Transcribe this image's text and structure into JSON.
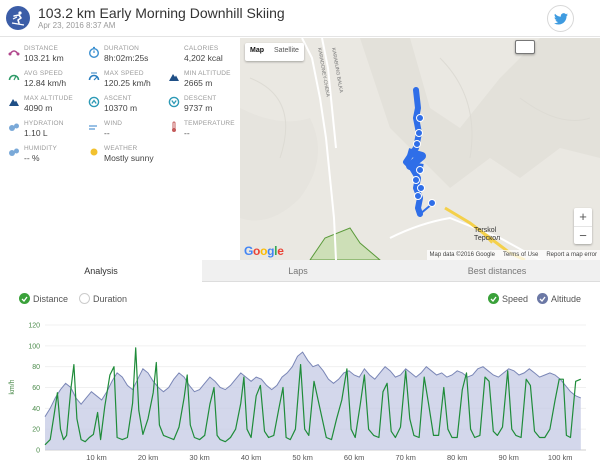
{
  "header": {
    "title": "103.2 km Early Morning Downhill Skiing",
    "subtitle": "Apr 23, 2016 8:37 AM"
  },
  "stats": [
    {
      "label": "DISTANCE",
      "value": "103.21 km",
      "icon": "distance-icon",
      "color": "#b0468c"
    },
    {
      "label": "DURATION",
      "value": "8h:02m:25s",
      "icon": "stopwatch-icon",
      "color": "#3a8fd0"
    },
    {
      "label": "CALORIES",
      "value": "4,202 kcal",
      "icon": "flame-icon",
      "color": "#e05a33"
    },
    {
      "label": "AVG SPEED",
      "value": "12.84 km/h",
      "icon": "speedometer-icon",
      "color": "#2f9a68"
    },
    {
      "label": "MAX SPEED",
      "value": "120.25 km/h",
      "icon": "max-speed-icon",
      "color": "#2b7fc0"
    },
    {
      "label": "MIN ALTITUDE",
      "value": "2665 m",
      "icon": "min-altitude-icon",
      "color": "#1f4f86"
    },
    {
      "label": "MAX ALTITUDE",
      "value": "4090 m",
      "icon": "max-altitude-icon",
      "color": "#1f4f86"
    },
    {
      "label": "ASCENT",
      "value": "10370 m",
      "icon": "ascent-icon",
      "color": "#2d9ab6"
    },
    {
      "label": "DESCENT",
      "value": "9737 m",
      "icon": "descent-icon",
      "color": "#2d9ab6"
    },
    {
      "label": "HYDRATION",
      "value": "1.10 L",
      "icon": "hydration-icon",
      "color": "#7aa9d8"
    },
    {
      "label": "WIND",
      "value": "--",
      "icon": "wind-icon",
      "color": "#5b9bd5"
    },
    {
      "label": "TEMPERATURE",
      "value": "--",
      "icon": "thermometer-icon",
      "color": "#c45b5b"
    },
    {
      "label": "HUMIDITY",
      "value": "-- %",
      "icon": "humidity-icon",
      "color": "#7aa9d8"
    },
    {
      "label": "WEATHER",
      "value": "Mostly sunny",
      "icon": "sun-icon",
      "color": "#f2c12e"
    }
  ],
  "map": {
    "tab_map": "Map",
    "tab_satellite": "Satellite",
    "road_label_1": "KARADONEY-CHEKA",
    "road_label_2": "KARABUNG BALKA",
    "town_line1": "Terskol",
    "town_line2": "Терскол",
    "google": "Google",
    "footer": {
      "data": "Map data ©2016 Google",
      "terms": "Terms of Use",
      "report": "Report a map error"
    },
    "zoom_in": "+",
    "zoom_out": "−"
  },
  "tabs": {
    "analysis": "Analysis",
    "laps": "Laps",
    "best": "Best distances"
  },
  "toggles": {
    "distance": "Distance",
    "duration": "Duration",
    "speed": "Speed",
    "altitude": "Altitude"
  },
  "colors": {
    "speed": "#1f8c3a",
    "altitude_fill": "#c8cde6",
    "altitude_line": "#7a86b6"
  },
  "chart_data": {
    "type": "line",
    "ylabel": "km/h",
    "ylim": [
      0,
      120
    ],
    "yticks": [
      0,
      20,
      40,
      60,
      80,
      100,
      120
    ],
    "xlim": [
      0,
      105
    ],
    "xticks": [
      10,
      20,
      30,
      40,
      50,
      60,
      70,
      80,
      90,
      100
    ],
    "xtick_suffix": " km",
    "series": [
      {
        "name": "Speed",
        "values": [
          [
            0,
            5
          ],
          [
            1,
            10
          ],
          [
            1.8,
            35
          ],
          [
            2.4,
            55
          ],
          [
            3,
            20
          ],
          [
            3.6,
            10
          ],
          [
            4.2,
            14
          ],
          [
            5,
            58
          ],
          [
            5.6,
            82
          ],
          [
            6.2,
            30
          ],
          [
            7,
            10
          ],
          [
            7.8,
            8
          ],
          [
            8.6,
            12
          ],
          [
            9.4,
            15
          ],
          [
            10.2,
            36
          ],
          [
            10.8,
            10
          ],
          [
            11.6,
            42
          ],
          [
            12.6,
            72
          ],
          [
            13.4,
            80
          ],
          [
            14,
            12
          ],
          [
            15,
            10
          ],
          [
            16,
            12
          ],
          [
            17,
            45
          ],
          [
            17.6,
            98
          ],
          [
            18.2,
            38
          ],
          [
            19,
            15
          ],
          [
            20,
            30
          ],
          [
            21,
            55
          ],
          [
            21.6,
            84
          ],
          [
            22.2,
            24
          ],
          [
            23,
            14
          ],
          [
            24,
            12
          ],
          [
            25,
            10
          ],
          [
            26,
            22
          ],
          [
            27,
            50
          ],
          [
            27.6,
            72
          ],
          [
            28.2,
            24
          ],
          [
            29,
            12
          ],
          [
            30,
            10
          ],
          [
            31,
            14
          ],
          [
            32,
            44
          ],
          [
            32.8,
            60
          ],
          [
            33.4,
            14
          ],
          [
            34,
            10
          ],
          [
            35,
            8
          ],
          [
            36,
            12
          ],
          [
            37,
            20
          ],
          [
            38,
            45
          ],
          [
            38.6,
            70
          ],
          [
            39.2,
            20
          ],
          [
            40,
            12
          ],
          [
            41,
            52
          ],
          [
            41.8,
            62
          ],
          [
            42.6,
            18
          ],
          [
            43.4,
            12
          ],
          [
            44.4,
            14
          ],
          [
            45.4,
            40
          ],
          [
            46.2,
            60
          ],
          [
            46.8,
            12
          ],
          [
            47.6,
            10
          ],
          [
            48.6,
            20
          ],
          [
            49.6,
            82
          ],
          [
            50.4,
            20
          ],
          [
            51.2,
            14
          ],
          [
            52.2,
            66
          ],
          [
            53,
            48
          ],
          [
            53.8,
            30
          ],
          [
            54.6,
            12
          ],
          [
            55.6,
            10
          ],
          [
            56.6,
            30
          ],
          [
            57.6,
            48
          ],
          [
            58.6,
            78
          ],
          [
            59.4,
            20
          ],
          [
            60.2,
            12
          ],
          [
            61.2,
            44
          ],
          [
            62,
            72
          ],
          [
            62.8,
            20
          ],
          [
            63.8,
            14
          ],
          [
            64.8,
            12
          ],
          [
            65.6,
            56
          ],
          [
            66.4,
            64
          ],
          [
            67.2,
            18
          ],
          [
            68,
            12
          ],
          [
            69,
            22
          ],
          [
            70,
            76
          ],
          [
            70.8,
            30
          ],
          [
            71.6,
            14
          ],
          [
            72.6,
            12
          ],
          [
            73.6,
            70
          ],
          [
            74.4,
            46
          ],
          [
            75.4,
            14
          ],
          [
            76.4,
            14
          ],
          [
            77.4,
            60
          ],
          [
            78.2,
            20
          ],
          [
            79,
            12
          ],
          [
            80,
            12
          ],
          [
            81,
            58
          ],
          [
            81.8,
            74
          ],
          [
            82.6,
            20
          ],
          [
            83.4,
            12
          ],
          [
            84.4,
            14
          ],
          [
            85.4,
            70
          ],
          [
            86.2,
            66
          ],
          [
            87,
            18
          ],
          [
            87.8,
            14
          ],
          [
            88.8,
            22
          ],
          [
            89.8,
            76
          ],
          [
            90.6,
            20
          ],
          [
            91.4,
            14
          ],
          [
            92.4,
            12
          ],
          [
            93.4,
            68
          ],
          [
            94.2,
            62
          ],
          [
            95,
            18
          ],
          [
            96,
            12
          ],
          [
            97,
            12
          ],
          [
            98,
            20
          ],
          [
            99,
            48
          ],
          [
            99.8,
            68
          ],
          [
            100.6,
            68
          ],
          [
            101.2,
            14
          ],
          [
            102,
            12
          ],
          [
            103,
            66
          ],
          [
            104,
            68
          ]
        ]
      },
      {
        "name": "Altitude",
        "values": [
          [
            0,
            32
          ],
          [
            1,
            40
          ],
          [
            2,
            50
          ],
          [
            3,
            58
          ],
          [
            4,
            64
          ],
          [
            5,
            60
          ],
          [
            6,
            50
          ],
          [
            7,
            44
          ],
          [
            8,
            50
          ],
          [
            9,
            56
          ],
          [
            10,
            52
          ],
          [
            11,
            48
          ],
          [
            12,
            56
          ],
          [
            13,
            66
          ],
          [
            14,
            74
          ],
          [
            15,
            70
          ],
          [
            16,
            62
          ],
          [
            17,
            58
          ],
          [
            18,
            68
          ],
          [
            19,
            78
          ],
          [
            20,
            74
          ],
          [
            21,
            66
          ],
          [
            22,
            60
          ],
          [
            23,
            56
          ],
          [
            24,
            60
          ],
          [
            25,
            68
          ],
          [
            26,
            74
          ],
          [
            27,
            70
          ],
          [
            28,
            62
          ],
          [
            29,
            56
          ],
          [
            30,
            58
          ],
          [
            31,
            64
          ],
          [
            32,
            70
          ],
          [
            33,
            66
          ],
          [
            34,
            60
          ],
          [
            35,
            58
          ],
          [
            36,
            62
          ],
          [
            37,
            68
          ],
          [
            38,
            74
          ],
          [
            39,
            70
          ],
          [
            40,
            66
          ],
          [
            41,
            70
          ],
          [
            42,
            68
          ],
          [
            43,
            62
          ],
          [
            44,
            58
          ],
          [
            45,
            62
          ],
          [
            46,
            70
          ],
          [
            47,
            74
          ],
          [
            48,
            80
          ],
          [
            49,
            90
          ],
          [
            50,
            94
          ],
          [
            51,
            86
          ],
          [
            52,
            80
          ],
          [
            53,
            82
          ],
          [
            54,
            76
          ],
          [
            55,
            68
          ],
          [
            56,
            64
          ],
          [
            57,
            68
          ],
          [
            58,
            74
          ],
          [
            59,
            76
          ],
          [
            60,
            72
          ],
          [
            61,
            70
          ],
          [
            62,
            78
          ],
          [
            63,
            72
          ],
          [
            64,
            68
          ],
          [
            65,
            74
          ],
          [
            66,
            80
          ],
          [
            67,
            76
          ],
          [
            68,
            70
          ],
          [
            69,
            72
          ],
          [
            70,
            78
          ],
          [
            71,
            74
          ],
          [
            72,
            70
          ],
          [
            73,
            74
          ],
          [
            74,
            80
          ],
          [
            75,
            76
          ],
          [
            76,
            72
          ],
          [
            77,
            74
          ],
          [
            78,
            70
          ],
          [
            79,
            72
          ],
          [
            80,
            76
          ],
          [
            81,
            74
          ],
          [
            82,
            70
          ],
          [
            83,
            72
          ],
          [
            84,
            78
          ],
          [
            85,
            80
          ],
          [
            86,
            76
          ],
          [
            87,
            72
          ],
          [
            88,
            70
          ],
          [
            89,
            74
          ],
          [
            90,
            78
          ],
          [
            91,
            76
          ],
          [
            92,
            72
          ],
          [
            93,
            74
          ],
          [
            94,
            78
          ],
          [
            95,
            74
          ],
          [
            96,
            70
          ],
          [
            97,
            72
          ],
          [
            98,
            74
          ],
          [
            99,
            72
          ],
          [
            100,
            68
          ],
          [
            101,
            62
          ],
          [
            102,
            56
          ],
          [
            103,
            52
          ],
          [
            104,
            50
          ]
        ]
      }
    ]
  }
}
